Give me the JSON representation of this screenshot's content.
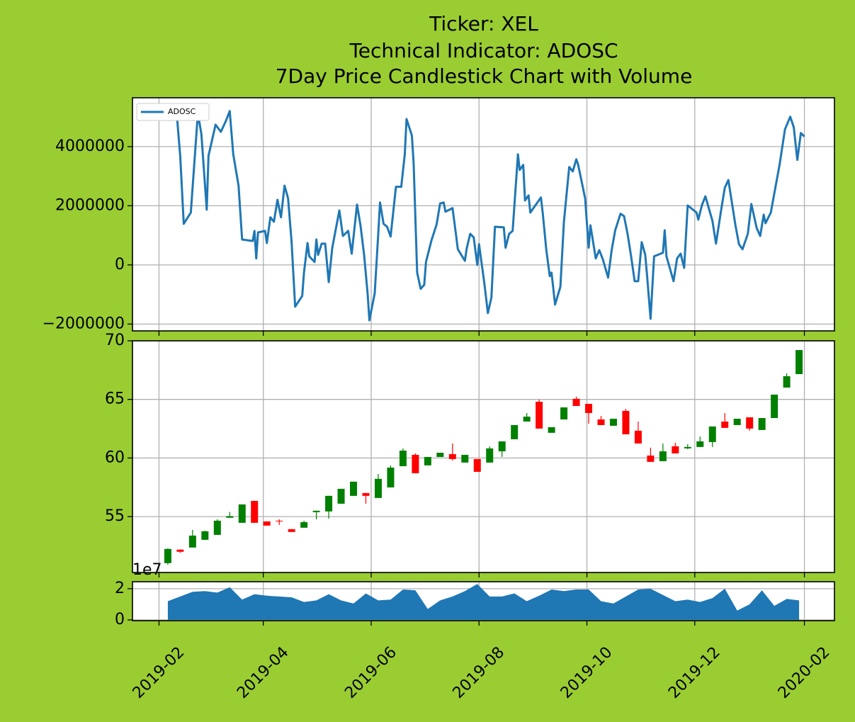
{
  "chart_data": [
    {
      "type": "line",
      "title": [
        "Ticker: XEL",
        "Technical Indicator: ADOSC",
        "7Day Price Candlestick Chart with Volume"
      ],
      "x": [
        "2019-02-06",
        "2019-02-11",
        "2019-02-13",
        "2019-02-15",
        "2019-02-19",
        "2019-02-23",
        "2019-02-25",
        "2019-02-28",
        "2019-03-01",
        "2019-03-05",
        "2019-03-08",
        "2019-03-11",
        "2019-03-13",
        "2019-03-15",
        "2019-03-18",
        "2019-03-20",
        "2019-03-26",
        "2019-03-27",
        "2019-03-28",
        "2019-03-29",
        "2019-04-02",
        "2019-04-03",
        "2019-04-05",
        "2019-04-07",
        "2019-04-09",
        "2019-04-11",
        "2019-04-13",
        "2019-04-15",
        "2019-04-17",
        "2019-04-19",
        "2019-04-23",
        "2019-04-24",
        "2019-04-26",
        "2019-04-27",
        "2019-04-30",
        "2019-05-01",
        "2019-05-02",
        "2019-05-04",
        "2019-05-06",
        "2019-05-08",
        "2019-05-10",
        "2019-05-14",
        "2019-05-16",
        "2019-05-19",
        "2019-05-21",
        "2019-05-24",
        "2019-05-26",
        "2019-05-28",
        "2019-05-30",
        "2019-05-31",
        "2019-06-03",
        "2019-06-05",
        "2019-06-06",
        "2019-06-08",
        "2019-06-10",
        "2019-06-12",
        "2019-06-15",
        "2019-06-18",
        "2019-06-20",
        "2019-06-21",
        "2019-06-24",
        "2019-06-25",
        "2019-06-27",
        "2019-06-29",
        "2019-07-01",
        "2019-07-02",
        "2019-07-05",
        "2019-07-08",
        "2019-07-10",
        "2019-07-12",
        "2019-07-13",
        "2019-07-17",
        "2019-07-19",
        "2019-07-20",
        "2019-07-24",
        "2019-07-25",
        "2019-07-27",
        "2019-07-29",
        "2019-07-31",
        "2019-08-01",
        "2019-08-04",
        "2019-08-06",
        "2019-08-08",
        "2019-08-10",
        "2019-08-15",
        "2019-08-16",
        "2019-08-18",
        "2019-08-20",
        "2019-08-23",
        "2019-08-24",
        "2019-08-26",
        "2019-08-27",
        "2019-08-29",
        "2019-08-30",
        "2019-09-05",
        "2019-09-06",
        "2019-09-08",
        "2019-09-10",
        "2019-09-11",
        "2019-09-13",
        "2019-09-16",
        "2019-09-18",
        "2019-09-21",
        "2019-09-23",
        "2019-09-25",
        "2019-09-26",
        "2019-09-30",
        "2019-10-02",
        "2019-10-03",
        "2019-10-06",
        "2019-10-08",
        "2019-10-10",
        "2019-10-13",
        "2019-10-15",
        "2019-10-17",
        "2019-10-20",
        "2019-10-22",
        "2019-10-24",
        "2019-10-26",
        "2019-10-28",
        "2019-10-30",
        "2019-11-01",
        "2019-11-03",
        "2019-11-04",
        "2019-11-06",
        "2019-11-08",
        "2019-11-13",
        "2019-11-14",
        "2019-11-15",
        "2019-11-19",
        "2019-11-21",
        "2019-11-23",
        "2019-11-25",
        "2019-11-27",
        "2019-12-02",
        "2019-12-03",
        "2019-12-05",
        "2019-12-07",
        "2019-12-11",
        "2019-12-13",
        "2019-12-16",
        "2019-12-18",
        "2019-12-20",
        "2019-12-24",
        "2019-12-26",
        "2019-12-28",
        "2019-12-31",
        "2020-01-02",
        "2020-01-05",
        "2020-01-07",
        "2020-01-09",
        "2020-01-10",
        "2020-01-13",
        "2020-01-18",
        "2020-01-21",
        "2020-01-24",
        "2020-01-26",
        "2020-01-28",
        "2020-01-30",
        "2020-02-01"
      ],
      "series": [
        {
          "name": "ADOSC",
          "color": "#1f77b4",
          "values": [
            4890000,
            5130000,
            3690000,
            1390000,
            1770000,
            5130000,
            4410000,
            1870000,
            3690000,
            4740000,
            4500000,
            4890000,
            5200000,
            3740000,
            2680000,
            860000,
            810000,
            1150000,
            220000,
            1100000,
            1150000,
            740000,
            1610000,
            1460000,
            2200000,
            1610000,
            2680000,
            2250000,
            770000,
            -1410000,
            -1050000,
            -260000,
            740000,
            290000,
            100000,
            860000,
            340000,
            720000,
            720000,
            -580000,
            580000,
            1840000,
            980000,
            1150000,
            380000,
            2040000,
            1320000,
            340000,
            -980000,
            -1870000,
            -960000,
            1050000,
            2110000,
            1390000,
            1290000,
            960000,
            2640000,
            2640000,
            3740000,
            4930000,
            4380000,
            3450000,
            -260000,
            -810000,
            -670000,
            100000,
            810000,
            1370000,
            2080000,
            2110000,
            1800000,
            1920000,
            1010000,
            530000,
            140000,
            550000,
            1050000,
            930000,
            0,
            700000,
            -620000,
            -1630000,
            -1100000,
            1290000,
            1270000,
            580000,
            1050000,
            1150000,
            3740000,
            3210000,
            3380000,
            2180000,
            2350000,
            1770000,
            2280000,
            1770000,
            530000,
            -380000,
            -260000,
            -1340000,
            -740000,
            1460000,
            3310000,
            3160000,
            3570000,
            3400000,
            2250000,
            580000,
            1340000,
            220000,
            500000,
            190000,
            -430000,
            500000,
            1170000,
            1730000,
            1650000,
            1050000,
            290000,
            -550000,
            -550000,
            770000,
            340000,
            -340000,
            -1820000,
            290000,
            410000,
            1170000,
            290000,
            -550000,
            220000,
            380000,
            -100000,
            2010000,
            1770000,
            1530000,
            2010000,
            2320000,
            1490000,
            720000,
            1890000,
            2610000,
            2870000,
            1340000,
            700000,
            530000,
            1050000,
            2060000,
            1250000,
            980000,
            1700000,
            1410000,
            1770000,
            3400000,
            4580000,
            5010000,
            4650000,
            3550000,
            4460000,
            4340000
          ]
        }
      ],
      "xlim": [
        "2019-01-17",
        "2020-02-18"
      ],
      "xticks": [
        "2019-02",
        "2019-04",
        "2019-06",
        "2019-08",
        "2019-10",
        "2019-12",
        "2020-02"
      ],
      "ylim": [
        -2230000,
        5650000
      ],
      "yticks": [
        {
          "value": -2000000,
          "label": "−2000000"
        },
        0,
        2000000,
        4000000
      ],
      "grid": true,
      "legend": "upper left"
    },
    {
      "type": "candlestick",
      "x": [
        "2019-02-06",
        "2019-02-13",
        "2019-02-20",
        "2019-02-27",
        "2019-03-06",
        "2019-03-13",
        "2019-03-20",
        "2019-03-27",
        "2019-04-03",
        "2019-04-10",
        "2019-04-17",
        "2019-04-24",
        "2019-05-01",
        "2019-05-08",
        "2019-05-15",
        "2019-05-22",
        "2019-05-29",
        "2019-06-05",
        "2019-06-12",
        "2019-06-19",
        "2019-06-26",
        "2019-07-03",
        "2019-07-10",
        "2019-07-17",
        "2019-07-24",
        "2019-07-31",
        "2019-08-07",
        "2019-08-14",
        "2019-08-21",
        "2019-08-28",
        "2019-09-04",
        "2019-09-11",
        "2019-09-18",
        "2019-09-25",
        "2019-10-02",
        "2019-10-09",
        "2019-10-16",
        "2019-10-23",
        "2019-10-30",
        "2019-11-06",
        "2019-11-13",
        "2019-11-20",
        "2019-11-27",
        "2019-12-04",
        "2019-12-11",
        "2019-12-18",
        "2019-12-25",
        "2020-01-01",
        "2020-01-08",
        "2020-01-15",
        "2020-01-22",
        "2020-01-29"
      ],
      "open": [
        51.03,
        52.18,
        52.36,
        53.02,
        53.44,
        54.9,
        54.47,
        56.34,
        54.59,
        54.65,
        53.93,
        54.05,
        55.38,
        55.44,
        56.1,
        56.77,
        57.01,
        56.59,
        57.49,
        59.3,
        60.27,
        59.37,
        60.09,
        60.33,
        59.61,
        59.91,
        59.61,
        60.57,
        61.6,
        63.11,
        64.8,
        62.15,
        63.29,
        65.05,
        64.62,
        63.29,
        62.75,
        64.02,
        62.33,
        60.21,
        59.73,
        61.0,
        60.82,
        60.94,
        61.36,
        63.11,
        62.81,
        63.47,
        62.39,
        63.41,
        66.01,
        67.16
      ],
      "high": [
        52.3,
        52.2,
        53.87,
        53.8,
        54.78,
        55.4,
        56.04,
        56.34,
        54.59,
        54.77,
        53.93,
        54.65,
        55.5,
        56.77,
        57.37,
        57.98,
        57.01,
        58.64,
        59.37,
        60.82,
        60.39,
        60.09,
        60.45,
        61.24,
        60.27,
        59.91,
        61.0,
        61.42,
        62.81,
        63.83,
        64.98,
        62.63,
        64.32,
        65.23,
        64.62,
        63.59,
        63.35,
        64.2,
        63.11,
        60.88,
        61.24,
        61.3,
        61.18,
        61.84,
        62.69,
        63.83,
        63.35,
        63.47,
        63.41,
        65.41,
        67.22,
        69.21
      ],
      "low": [
        50.9,
        51.9,
        52.36,
        53.0,
        53.44,
        54.9,
        54.47,
        54.47,
        54.23,
        54.29,
        53.69,
        54.05,
        54.77,
        54.83,
        56.1,
        56.77,
        56.1,
        56.59,
        57.49,
        59.3,
        58.7,
        59.37,
        60.09,
        59.79,
        59.61,
        58.82,
        59.61,
        60.09,
        61.6,
        63.11,
        62.51,
        62.15,
        63.29,
        64.44,
        62.93,
        62.81,
        62.75,
        62.02,
        61.24,
        59.67,
        59.73,
        60.39,
        60.76,
        60.94,
        60.94,
        62.57,
        62.81,
        62.33,
        62.39,
        63.41,
        66.01,
        67.16
      ],
      "close": [
        52.24,
        52.0,
        53.38,
        53.75,
        54.65,
        55.04,
        56.04,
        54.47,
        54.23,
        54.59,
        53.69,
        54.53,
        55.5,
        56.77,
        57.37,
        57.98,
        56.77,
        58.22,
        59.18,
        60.63,
        58.7,
        60.09,
        60.45,
        59.91,
        60.27,
        58.82,
        60.82,
        61.42,
        62.81,
        63.53,
        62.51,
        62.63,
        64.32,
        64.44,
        63.84,
        62.81,
        63.35,
        62.02,
        61.24,
        59.67,
        60.57,
        60.39,
        60.94,
        61.42,
        62.69,
        62.57,
        63.35,
        62.51,
        63.41,
        65.41,
        66.98,
        69.21
      ],
      "up_color": "green",
      "down_color": "red",
      "xlim": [
        "2019-01-17",
        "2020-02-18"
      ],
      "xticks": [
        "2019-02",
        "2019-04",
        "2019-06",
        "2019-08",
        "2019-10",
        "2019-12",
        "2020-02"
      ],
      "ylim": [
        50.23,
        70
      ],
      "yticks": [
        55,
        60,
        65,
        70
      ],
      "grid": true
    },
    {
      "type": "area",
      "x": [
        "2019-02-06",
        "2019-02-13",
        "2019-02-20",
        "2019-02-27",
        "2019-03-06",
        "2019-03-13",
        "2019-03-20",
        "2019-03-27",
        "2019-04-03",
        "2019-04-10",
        "2019-04-17",
        "2019-04-24",
        "2019-05-01",
        "2019-05-08",
        "2019-05-15",
        "2019-05-22",
        "2019-05-29",
        "2019-06-05",
        "2019-06-12",
        "2019-06-19",
        "2019-06-26",
        "2019-07-03",
        "2019-07-10",
        "2019-07-17",
        "2019-07-24",
        "2019-07-31",
        "2019-08-07",
        "2019-08-14",
        "2019-08-21",
        "2019-08-28",
        "2019-09-04",
        "2019-09-11",
        "2019-09-18",
        "2019-09-25",
        "2019-10-02",
        "2019-10-09",
        "2019-10-16",
        "2019-10-23",
        "2019-10-30",
        "2019-11-06",
        "2019-11-13",
        "2019-11-20",
        "2019-11-27",
        "2019-12-04",
        "2019-12-11",
        "2019-12-18",
        "2019-12-25",
        "2020-01-01",
        "2020-01-08",
        "2020-01-15",
        "2020-01-22",
        "2020-01-29"
      ],
      "values": [
        1.2,
        1.5,
        1.8,
        1.85,
        1.75,
        2.1,
        1.3,
        1.65,
        1.55,
        1.5,
        1.45,
        1.15,
        1.25,
        1.65,
        1.25,
        1.05,
        1.7,
        1.25,
        1.3,
        1.95,
        1.9,
        0.7,
        1.25,
        1.5,
        1.85,
        2.3,
        1.5,
        1.5,
        1.7,
        1.2,
        1.55,
        1.95,
        1.85,
        1.95,
        1.95,
        1.2,
        1.05,
        1.5,
        1.95,
        2.0,
        1.6,
        1.2,
        1.3,
        1.15,
        1.4,
        2.0,
        0.6,
        1.0,
        1.9,
        0.9,
        1.35,
        1.25
      ],
      "color": "#1f77b4",
      "offset_label": "1e7",
      "xlim": [
        "2019-01-17",
        "2020-02-18"
      ],
      "xticks": [
        "2019-02",
        "2019-04",
        "2019-06",
        "2019-08",
        "2019-10",
        "2019-12",
        "2020-02"
      ],
      "ylim": [
        -0.05,
        2.45
      ],
      "yticks": [
        0,
        2
      ],
      "grid": true
    }
  ]
}
